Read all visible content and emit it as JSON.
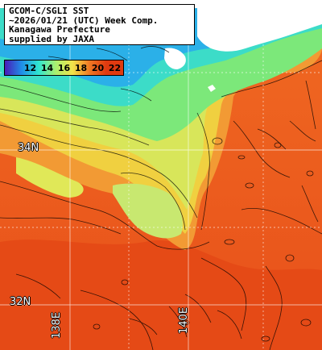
{
  "title": {
    "lines": [
      "GCOM-C/SGLI SST",
      "~2026/01/21 (UTC) Week Comp.",
      "Kanagawa Prefecture",
      "supplied by JAXA"
    ]
  },
  "color_scale": {
    "labels": [
      "12",
      "14",
      "16",
      "18",
      "20",
      "22"
    ],
    "colors": [
      "#4a1bb8",
      "#1f8ee8",
      "#2fe6d0",
      "#a8f070",
      "#f3e34a",
      "#f07a24",
      "#e03a10"
    ]
  },
  "lat_labels": [
    "34N",
    "32N"
  ],
  "lon_labels": [
    "138E",
    "140E"
  ],
  "colors": {
    "land": "#ffffff",
    "gridline": "#ffffff",
    "contour": "#000000"
  }
}
